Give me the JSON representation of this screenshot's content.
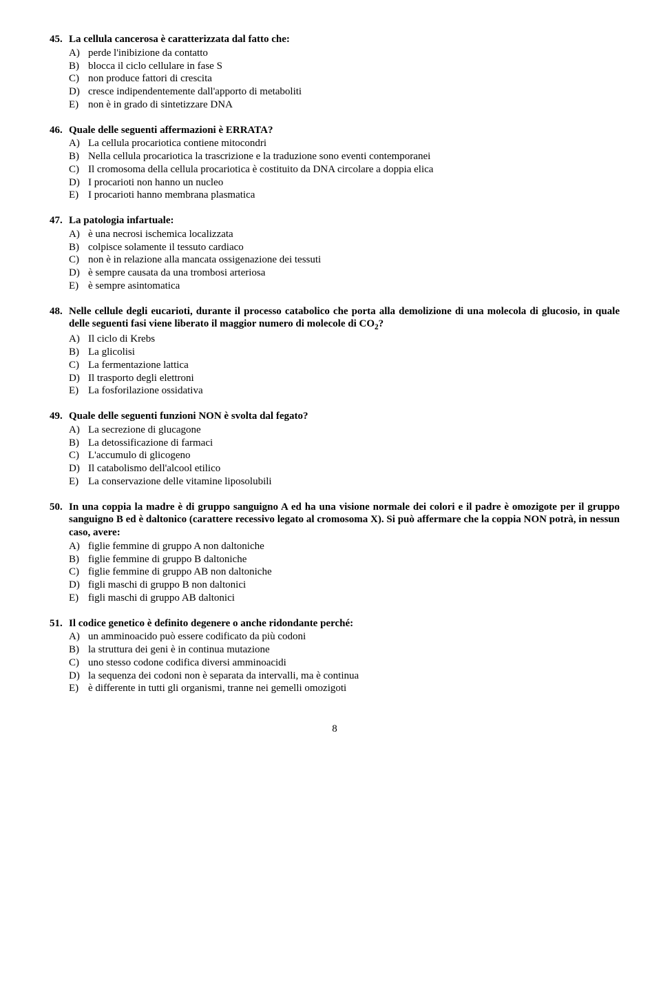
{
  "questions": [
    {
      "num": "45.",
      "text": "La cellula cancerosa è caratterizzata dal fatto che:",
      "options": [
        "perde l'inibizione da contatto",
        "blocca il ciclo cellulare in fase S",
        "non produce fattori di crescita",
        "cresce indipendentemente dall'apporto di metaboliti",
        "non è in grado di sintetizzare DNA"
      ]
    },
    {
      "num": "46.",
      "text": "Quale delle seguenti affermazioni è ERRATA?",
      "options": [
        "La cellula procariotica contiene mitocondri",
        "Nella cellula procariotica la trascrizione e la traduzione sono eventi contemporanei",
        "Il cromosoma della cellula procariotica è costituito da DNA circolare a doppia elica",
        "I procarioti non hanno un nucleo",
        "I procarioti hanno membrana plasmatica"
      ]
    },
    {
      "num": "47.",
      "text": "La patologia infartuale:",
      "options": [
        "è una necrosi ischemica localizzata",
        "colpisce solamente il tessuto cardiaco",
        "non è in relazione alla mancata ossigenazione dei tessuti",
        "è sempre causata da una trombosi arteriosa",
        "è sempre asintomatica"
      ]
    },
    {
      "num": "48.",
      "text_html": "Nelle cellule degli eucarioti, durante il processo catabolico che porta alla demolizione di una molecola di glucosio, in quale delle seguenti fasi viene liberato il maggior numero di molecole di CO<sub>2</sub>?",
      "options": [
        "Il ciclo di Krebs",
        "La glicolisi",
        "La fermentazione lattica",
        "Il trasporto degli elettroni",
        "La fosforilazione ossidativa"
      ]
    },
    {
      "num": "49.",
      "text": "Quale delle seguenti funzioni NON è svolta dal fegato?",
      "options": [
        "La secrezione di glucagone",
        "La detossificazione di farmaci",
        "L'accumulo di glicogeno",
        "Il catabolismo dell'alcool etilico",
        "La conservazione delle vitamine liposolubili"
      ]
    },
    {
      "num": "50.",
      "text": "In una coppia la madre è di gruppo sanguigno A ed ha una visione normale dei colori e il padre è omozigote per il gruppo sanguigno B ed è daltonico (carattere recessivo legato al cromosoma X). Si può affermare che la coppia NON potrà, in nessun caso, avere:",
      "options": [
        "figlie femmine di gruppo A non daltoniche",
        "figlie femmine di gruppo B daltoniche",
        "figlie femmine di gruppo AB non daltoniche",
        "figli maschi di gruppo B non daltonici",
        "figli maschi di gruppo AB daltonici"
      ]
    },
    {
      "num": "51.",
      "text": "Il codice genetico è definito degenere o anche ridondante perché:",
      "options": [
        "un amminoacido può essere codificato da più codoni",
        "la struttura dei geni è in continua mutazione",
        "uno stesso codone codifica diversi amminoacidi",
        "la sequenza dei codoni non è separata da intervalli, ma è continua",
        "è differente in tutti gli organismi, tranne nei gemelli omozigoti"
      ]
    }
  ],
  "opt_letters": [
    "A)",
    "B)",
    "C)",
    "D)",
    "E)"
  ],
  "page_number": "8"
}
